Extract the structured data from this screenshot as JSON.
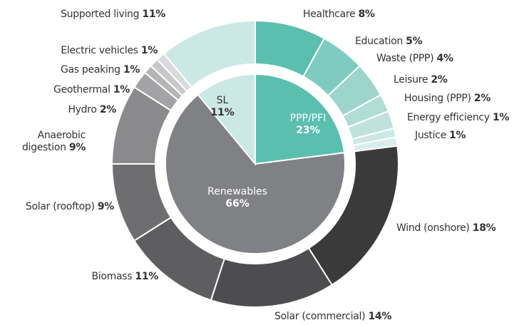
{
  "chart_data": {
    "type": "nested-donut",
    "inner": {
      "labels": [
        "PPP/PFI",
        "Renewables",
        "SL"
      ],
      "values": [
        23,
        66,
        11
      ],
      "value_labels": [
        "23%",
        "66%",
        "11%"
      ],
      "colors": [
        "#5bbfb0",
        "#808184",
        "#cce8e4"
      ]
    },
    "outer": {
      "labels": [
        "Healthcare",
        "Education",
        "Waste (PPP)",
        "Leisure",
        "Housing (PPP)",
        "Energy efficiency",
        "Justice",
        "Wind (onshore)",
        "Solar (commercial)",
        "Biomass",
        "Solar (rooftop)",
        "Anaerobic digestion",
        "Hydro",
        "Geothermal",
        "Gas peaking",
        "Electric vehicles",
        "Supported living"
      ],
      "values": [
        8,
        5,
        4,
        2,
        2,
        1,
        1,
        18,
        14,
        11,
        9,
        9,
        2,
        1,
        1,
        1,
        11
      ],
      "value_labels": [
        "8%",
        "5%",
        "4%",
        "2%",
        "2%",
        "1%",
        "1%",
        "18%",
        "14%",
        "11%",
        "9%",
        "9%",
        "2%",
        "1%",
        "1%",
        "1%",
        "11%"
      ],
      "colors": [
        "#5bbfb0",
        "#7fcbc1",
        "#9dd5cd",
        "#b2ddd7",
        "#bfe2dd",
        "#cce8e4",
        "#d9eeeb",
        "#3a3a3a",
        "#4d4d4f",
        "#5e5e60",
        "#6e6e70",
        "#8a8a8c",
        "#a3a3a5",
        "#b5b5b7",
        "#c8c8ca",
        "#dadadc",
        "#cce8e4"
      ]
    }
  }
}
